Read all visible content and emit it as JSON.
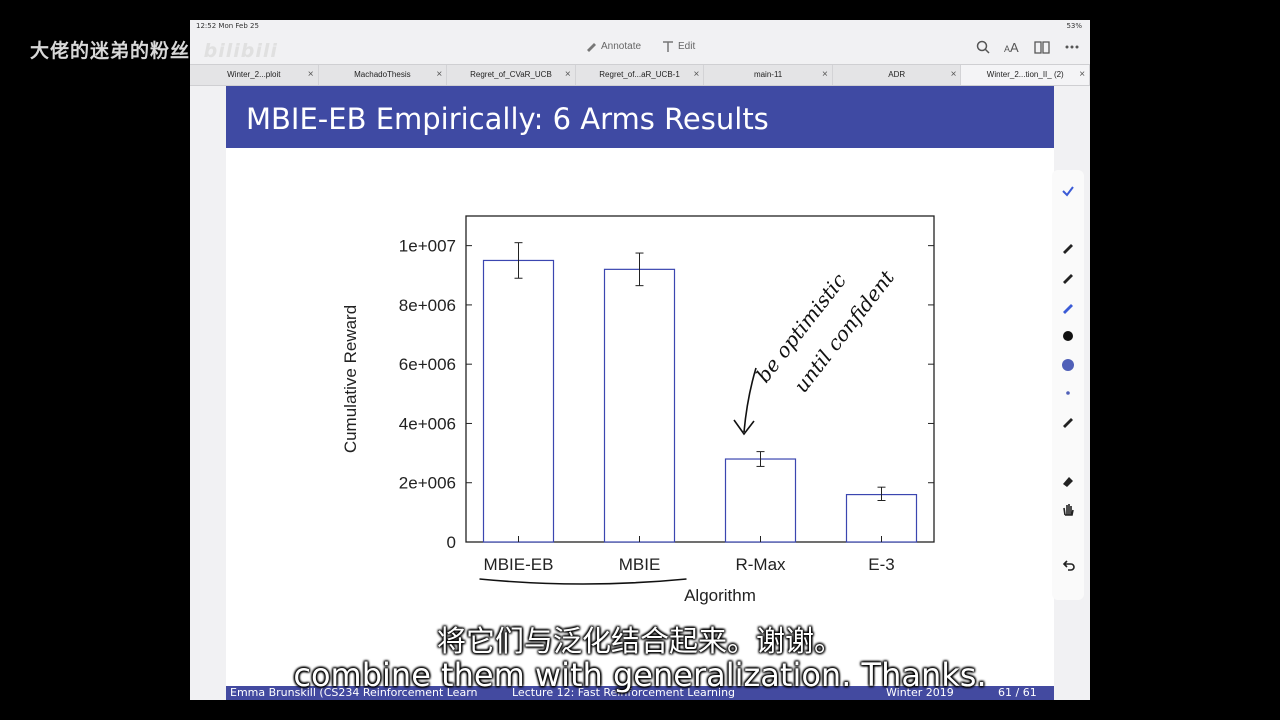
{
  "status_bar": {
    "time": "12:52",
    "date": "Mon Feb 25",
    "battery": "53%"
  },
  "toolbar": {
    "annotate_label": "Annotate",
    "edit_label": "Edit"
  },
  "tabs": [
    {
      "label": "Winter_2...ploit"
    },
    {
      "label": "MachadoThesis"
    },
    {
      "label": "Regret_of_CVaR_UCB"
    },
    {
      "label": "Regret_of...aR_UCB-1"
    },
    {
      "label": "main-11"
    },
    {
      "label": "ADR"
    },
    {
      "label": "Winter_2...tion_II_ (2)"
    }
  ],
  "slide": {
    "title": "MBIE-EB Empirically: 6 Arms Results",
    "footer_left": "Emma Brunskill (CS234 Reinforcement Learn",
    "footer_mid": "Lecture 12: Fast Reinforcement Learning",
    "footer_term": "Winter 2019",
    "footer_page": "61 / 61"
  },
  "chart_data": {
    "type": "bar",
    "categories": [
      "MBIE-EB",
      "MBIE",
      "R-Max",
      "E-3"
    ],
    "values": [
      9500000,
      9200000,
      2800000,
      1600000
    ],
    "error_low": [
      8900000,
      8650000,
      2550000,
      1400000
    ],
    "error_high": [
      10100000,
      9750000,
      3050000,
      1850000
    ],
    "xlabel": "Algorithm",
    "ylabel": "Cumulative Reward",
    "ylim": [
      0,
      11000000
    ],
    "yticks": [
      0,
      2000000,
      4000000,
      6000000,
      8000000,
      10000000
    ],
    "ytick_labels": [
      "0",
      "2e+006",
      "4e+006",
      "6e+006",
      "8e+006",
      "1e+007"
    ],
    "handwritten_annotation": "be optimistic until confident"
  },
  "subtitles": {
    "chinese": "将它们与泛化结合起来。谢谢。",
    "english": "combine them with generalization. Thanks."
  },
  "watermark": {
    "text": "大佬的迷弟的粉丝",
    "logo": "bilibili"
  }
}
